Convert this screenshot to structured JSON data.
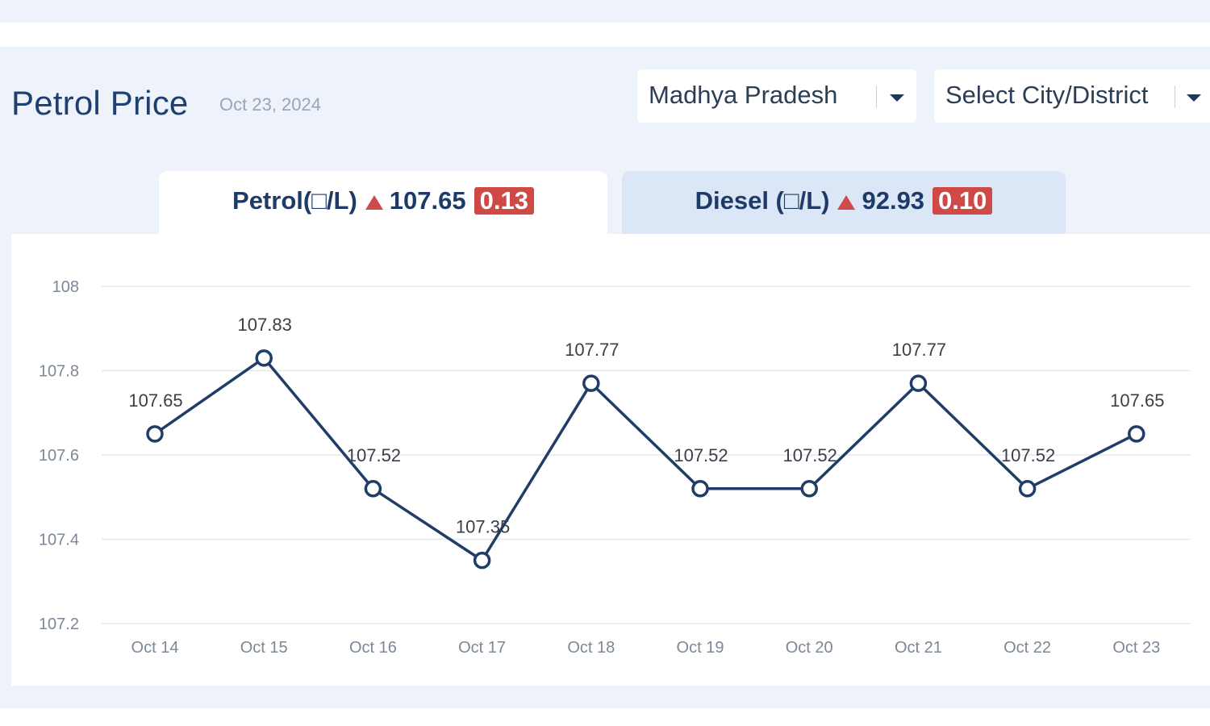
{
  "header": {
    "title": "Petrol Price",
    "date": "Oct 23, 2024"
  },
  "filters": {
    "state": "Madhya Pradesh",
    "city": "Select City/District"
  },
  "tabs": [
    {
      "label": "Petrol(□/L)",
      "price": "107.65",
      "change": "0.13",
      "direction": "up",
      "active": true
    },
    {
      "label": "Diesel (□/L)",
      "price": "92.93",
      "change": "0.10",
      "direction": "up",
      "active": false
    }
  ],
  "colors": {
    "title": "#1e4070",
    "line": "#1f3d66",
    "badge": "#cf4a46",
    "up_arrow": "#cd4b4b",
    "active_tab": "#ffffff",
    "inactive_tab": "#dbe6f7"
  },
  "chart_data": {
    "type": "line",
    "categories": [
      "Oct 14",
      "Oct 15",
      "Oct 16",
      "Oct 17",
      "Oct 18",
      "Oct 19",
      "Oct 20",
      "Oct 21",
      "Oct 22",
      "Oct 23"
    ],
    "series": [
      {
        "values": [
          107.65,
          107.83,
          107.52,
          107.35,
          107.77,
          107.52,
          107.52,
          107.77,
          107.52,
          107.65
        ]
      }
    ],
    "data_labels": [
      "107.65",
      "107.83",
      "107.52",
      "107.35",
      "107.77",
      "107.52",
      "107.52",
      "107.77",
      "107.52",
      "107.65"
    ],
    "y_ticks": [
      "108",
      "107.8",
      "107.6",
      "107.4",
      "107.2"
    ],
    "ylim": [
      107.2,
      108
    ],
    "grid": true,
    "legend": "none",
    "title": "",
    "xlabel": "",
    "ylabel": ""
  }
}
